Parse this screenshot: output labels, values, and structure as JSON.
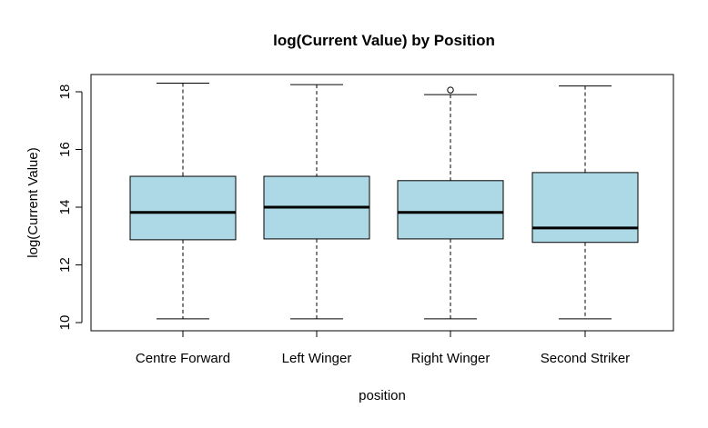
{
  "chart_data": {
    "type": "boxplot",
    "title": "log(Current Value) by Position",
    "xlabel": "position",
    "ylabel": "log(Current Value)",
    "ylim": [
      9.9,
      18.6
    ],
    "yticks": [
      "10",
      "12",
      "14",
      "16",
      "18"
    ],
    "categories": [
      "Centre Forward",
      "Left Winger",
      "Right Winger",
      "Second Striker"
    ],
    "boxes": [
      {
        "whisker_low": 10.13,
        "q1": 12.87,
        "median": 13.82,
        "q3": 15.07,
        "whisker_high": 18.3,
        "outliers": []
      },
      {
        "whisker_low": 10.13,
        "q1": 12.9,
        "median": 14.0,
        "q3": 15.07,
        "whisker_high": 18.25,
        "outliers": []
      },
      {
        "whisker_low": 10.13,
        "q1": 12.9,
        "median": 13.82,
        "q3": 14.92,
        "whisker_high": 17.9,
        "outliers": [
          18.06
        ]
      },
      {
        "whisker_low": 10.13,
        "q1": 12.78,
        "median": 13.28,
        "q3": 15.2,
        "whisker_high": 18.2,
        "outliers": []
      }
    ],
    "box_color": "#ADD8E6",
    "line_color": "#000000"
  }
}
